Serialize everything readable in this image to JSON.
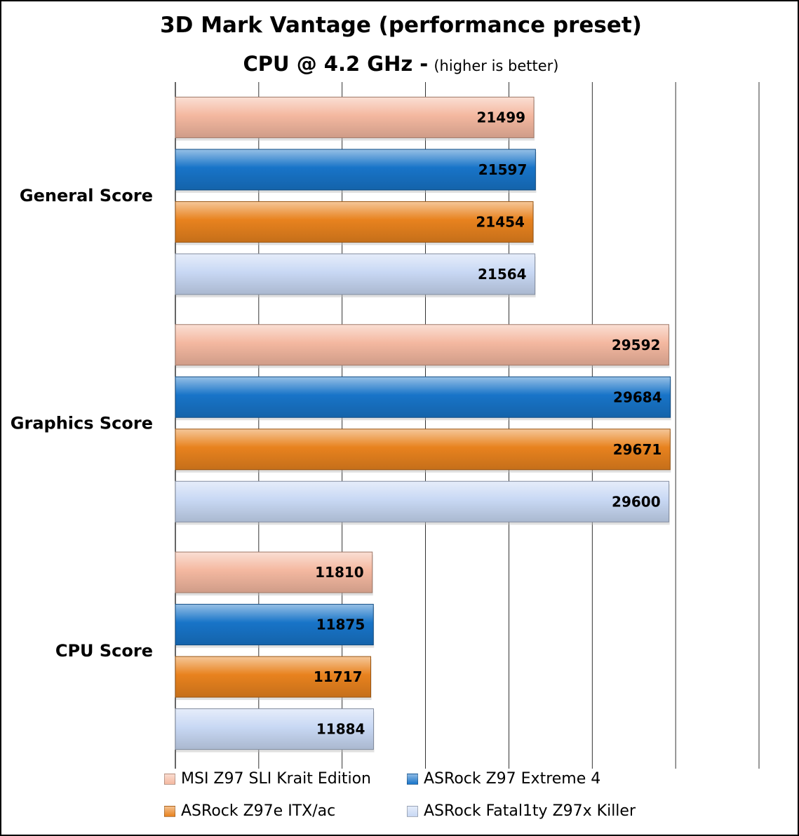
{
  "title": "3D Mark Vantage (performance preset)",
  "subtitle_main": "CPU @ 4.2 GHz -",
  "subtitle_note": "(higher is better)",
  "chart_data": {
    "type": "bar",
    "orientation": "horizontal",
    "categories": [
      "General Score",
      "Graphics Score",
      "CPU Score"
    ],
    "series": [
      {
        "name": "MSI Z97 SLI Krait Edition",
        "color": "#f4b8a0",
        "values": [
          21499,
          29592,
          11810
        ]
      },
      {
        "name": "ASRock Z97 Extreme 4",
        "color": "#1874c8",
        "values": [
          21597,
          29684,
          11875
        ]
      },
      {
        "name": "ASRock Z97e ITX/ac",
        "color": "#e8821e",
        "values": [
          21454,
          29671,
          11717
        ]
      },
      {
        "name": "ASRock Fatal1ty Z97x Killer",
        "color": "#c8d8f4",
        "values": [
          21564,
          29600,
          11884
        ]
      }
    ],
    "xlim": [
      0,
      35000
    ],
    "grid": true,
    "legend_position": "bottom",
    "data_labels": true
  }
}
